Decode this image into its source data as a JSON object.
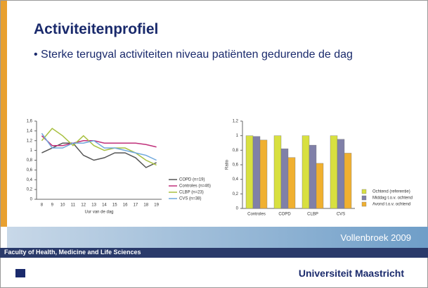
{
  "slide": {
    "title": "Activiteitenprofiel",
    "bullet": "Sterke terugval activiteiten niveau patiënten gedurende de dag",
    "citation": "Vollenbroek 2009",
    "faculty": "Faculty of Health, Medicine and Life Sciences",
    "university": "Universiteit Maastricht"
  },
  "chart_data": [
    {
      "type": "line",
      "xlabel": "Uur van de dag",
      "categories": [
        "8",
        "9",
        "10",
        "11",
        "12",
        "13",
        "14",
        "15",
        "16",
        "17",
        "18",
        "19"
      ],
      "ylim": [
        0,
        1.6
      ],
      "yticks": [
        0,
        {
          "value": 0.2,
          "label": "0,2"
        },
        {
          "value": 0.4,
          "label": "0,4"
        },
        {
          "value": 0.6,
          "label": "0,6"
        },
        {
          "value": 0.8,
          "label": "0,8"
        },
        1,
        {
          "value": 1.2,
          "label": "1,2"
        },
        {
          "value": 1.4,
          "label": "1,4"
        },
        {
          "value": 1.6,
          "label": "1,6"
        }
      ],
      "series": [
        {
          "name": "COPD (n=19)",
          "color": "#555555",
          "values": [
            0.95,
            1.05,
            1.15,
            1.15,
            0.9,
            0.8,
            0.85,
            0.95,
            0.95,
            0.85,
            0.65,
            0.75
          ]
        },
        {
          "name": "Controles (n=46)",
          "color": "#c0307a",
          "values": [
            1.3,
            1.1,
            1.1,
            1.15,
            1.2,
            1.2,
            1.15,
            1.15,
            1.15,
            1.15,
            1.12,
            1.07
          ]
        },
        {
          "name": "CLBP (n=23)",
          "color": "#a8c040",
          "values": [
            1.2,
            1.45,
            1.3,
            1.1,
            1.3,
            1.1,
            1.0,
            1.05,
            1.05,
            0.95,
            0.8,
            0.7
          ]
        },
        {
          "name": "CVS (n=38)",
          "color": "#6fa8dc",
          "values": [
            1.35,
            1.05,
            1.05,
            1.15,
            1.15,
            1.2,
            1.05,
            1.05,
            1.0,
            0.95,
            0.9,
            0.8
          ]
        }
      ]
    },
    {
      "type": "bar",
      "ylabel": "Ratio",
      "categories": [
        "Controles",
        "COPD",
        "CLBP",
        "CVS"
      ],
      "ylim": [
        0,
        1.2
      ],
      "yticks": [
        0,
        {
          "value": 0.2,
          "label": "0,2"
        },
        {
          "value": 0.4,
          "label": "0,4"
        },
        {
          "value": 0.6,
          "label": "0,6"
        },
        {
          "value": 0.8,
          "label": "0,8"
        },
        1,
        {
          "value": 1.2,
          "label": "1,2"
        }
      ],
      "series": [
        {
          "name": "Ochtend (referentie)",
          "color": "#d8e040",
          "values": [
            1.0,
            1.0,
            1.0,
            1.0
          ]
        },
        {
          "name": "Middag t.o.v. ochtend",
          "color": "#8080a8",
          "values": [
            0.99,
            0.82,
            0.87,
            0.95
          ]
        },
        {
          "name": "Avond t.o.v. ochtend",
          "color": "#f0b030",
          "values": [
            0.94,
            0.7,
            0.62,
            0.76
          ]
        }
      ]
    }
  ]
}
